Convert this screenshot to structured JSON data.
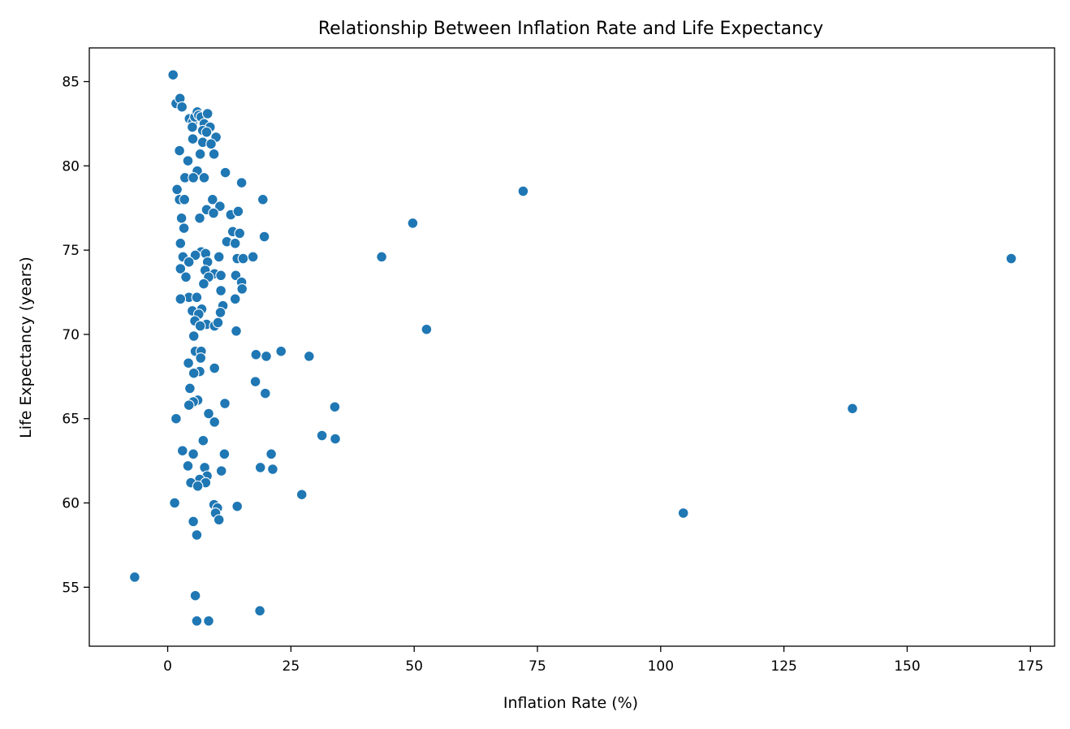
{
  "chart_data": {
    "type": "scatter",
    "title": "Relationship Between Inflation Rate and Life Expectancy",
    "xlabel": "Inflation Rate (%)",
    "ylabel": "Life Expectancy (years)",
    "xlim": [
      -15.9,
      179.9
    ],
    "ylim": [
      51.5,
      87.0
    ],
    "xticks": [
      0,
      25,
      50,
      75,
      100,
      125,
      150,
      175
    ],
    "yticks": [
      55,
      60,
      65,
      70,
      75,
      80,
      85
    ],
    "grid": false,
    "color": "#1f77b4",
    "points": [
      [
        1.1,
        85.4
      ],
      [
        1.7,
        83.7
      ],
      [
        2.5,
        84.0
      ],
      [
        2.9,
        83.5
      ],
      [
        4.4,
        82.8
      ],
      [
        5.1,
        82.6
      ],
      [
        5.5,
        82.9
      ],
      [
        6.0,
        83.2
      ],
      [
        6.3,
        83.0
      ],
      [
        6.8,
        82.9
      ],
      [
        7.4,
        82.5
      ],
      [
        8.1,
        83.1
      ],
      [
        8.6,
        82.3
      ],
      [
        5.0,
        82.3
      ],
      [
        7.1,
        82.1
      ],
      [
        7.9,
        82.0
      ],
      [
        9.8,
        81.7
      ],
      [
        5.1,
        81.6
      ],
      [
        7.1,
        81.4
      ],
      [
        8.8,
        81.3
      ],
      [
        6.6,
        80.7
      ],
      [
        9.4,
        80.7
      ],
      [
        2.4,
        80.9
      ],
      [
        4.1,
        80.3
      ],
      [
        6.0,
        79.7
      ],
      [
        3.5,
        79.3
      ],
      [
        5.2,
        79.3
      ],
      [
        7.4,
        79.3
      ],
      [
        11.7,
        79.6
      ],
      [
        15.0,
        79.0
      ],
      [
        1.9,
        78.6
      ],
      [
        2.4,
        78.0
      ],
      [
        3.4,
        78.0
      ],
      [
        9.1,
        78.0
      ],
      [
        19.3,
        78.0
      ],
      [
        72.1,
        78.5
      ],
      [
        10.6,
        77.6
      ],
      [
        7.9,
        77.4
      ],
      [
        9.3,
        77.2
      ],
      [
        12.8,
        77.1
      ],
      [
        14.3,
        77.3
      ],
      [
        2.8,
        76.9
      ],
      [
        6.5,
        76.9
      ],
      [
        49.7,
        76.6
      ],
      [
        3.3,
        76.3
      ],
      [
        13.2,
        76.1
      ],
      [
        14.6,
        76.0
      ],
      [
        19.6,
        75.8
      ],
      [
        12.0,
        75.5
      ],
      [
        13.7,
        75.4
      ],
      [
        2.6,
        75.4
      ],
      [
        6.8,
        74.9
      ],
      [
        7.7,
        74.8
      ],
      [
        5.6,
        74.7
      ],
      [
        10.4,
        74.6
      ],
      [
        3.1,
        74.6
      ],
      [
        4.3,
        74.3
      ],
      [
        8.1,
        74.3
      ],
      [
        14.1,
        74.5
      ],
      [
        15.3,
        74.5
      ],
      [
        17.3,
        74.6
      ],
      [
        43.4,
        74.6
      ],
      [
        171.1,
        74.5
      ],
      [
        2.6,
        73.9
      ],
      [
        7.6,
        73.8
      ],
      [
        9.5,
        73.6
      ],
      [
        3.7,
        73.4
      ],
      [
        8.3,
        73.4
      ],
      [
        10.8,
        73.5
      ],
      [
        13.8,
        73.5
      ],
      [
        15.0,
        73.1
      ],
      [
        7.3,
        73.0
      ],
      [
        15.1,
        72.7
      ],
      [
        10.8,
        72.6
      ],
      [
        4.3,
        72.2
      ],
      [
        5.9,
        72.2
      ],
      [
        13.7,
        72.1
      ],
      [
        2.6,
        72.1
      ],
      [
        11.2,
        71.7
      ],
      [
        6.9,
        71.5
      ],
      [
        5.0,
        71.4
      ],
      [
        10.7,
        71.3
      ],
      [
        6.3,
        71.2
      ],
      [
        5.5,
        70.8
      ],
      [
        7.9,
        70.6
      ],
      [
        9.5,
        70.5
      ],
      [
        10.2,
        70.7
      ],
      [
        6.6,
        70.5
      ],
      [
        52.5,
        70.3
      ],
      [
        13.9,
        70.2
      ],
      [
        5.3,
        69.9
      ],
      [
        5.6,
        69.0
      ],
      [
        6.8,
        69.0
      ],
      [
        23.0,
        69.0
      ],
      [
        17.9,
        68.8
      ],
      [
        20.0,
        68.7
      ],
      [
        28.7,
        68.7
      ],
      [
        6.7,
        68.6
      ],
      [
        4.2,
        68.3
      ],
      [
        9.5,
        68.0
      ],
      [
        6.5,
        67.8
      ],
      [
        5.3,
        67.7
      ],
      [
        17.8,
        67.2
      ],
      [
        19.8,
        66.5
      ],
      [
        4.5,
        66.8
      ],
      [
        6.1,
        66.1
      ],
      [
        5.2,
        66.0
      ],
      [
        11.6,
        65.9
      ],
      [
        4.3,
        65.8
      ],
      [
        33.9,
        65.7
      ],
      [
        138.9,
        65.6
      ],
      [
        8.3,
        65.3
      ],
      [
        9.5,
        64.8
      ],
      [
        1.7,
        65.0
      ],
      [
        31.3,
        64.0
      ],
      [
        34.0,
        63.8
      ],
      [
        7.2,
        63.7
      ],
      [
        3.0,
        63.1
      ],
      [
        5.2,
        62.9
      ],
      [
        11.5,
        62.9
      ],
      [
        21.0,
        62.9
      ],
      [
        4.1,
        62.2
      ],
      [
        7.5,
        62.1
      ],
      [
        18.8,
        62.1
      ],
      [
        21.3,
        62.0
      ],
      [
        10.9,
        61.9
      ],
      [
        8.0,
        61.6
      ],
      [
        6.5,
        61.4
      ],
      [
        7.7,
        61.2
      ],
      [
        4.7,
        61.2
      ],
      [
        6.1,
        61.0
      ],
      [
        27.2,
        60.5
      ],
      [
        1.4,
        60.0
      ],
      [
        9.4,
        59.9
      ],
      [
        14.1,
        59.8
      ],
      [
        10.1,
        59.7
      ],
      [
        9.7,
        59.4
      ],
      [
        104.6,
        59.4
      ],
      [
        10.4,
        59.0
      ],
      [
        5.2,
        58.9
      ],
      [
        5.9,
        58.1
      ],
      [
        -6.7,
        55.6
      ],
      [
        5.6,
        54.5
      ],
      [
        18.7,
        53.6
      ],
      [
        5.9,
        53.0
      ],
      [
        8.3,
        53.0
      ]
    ]
  }
}
